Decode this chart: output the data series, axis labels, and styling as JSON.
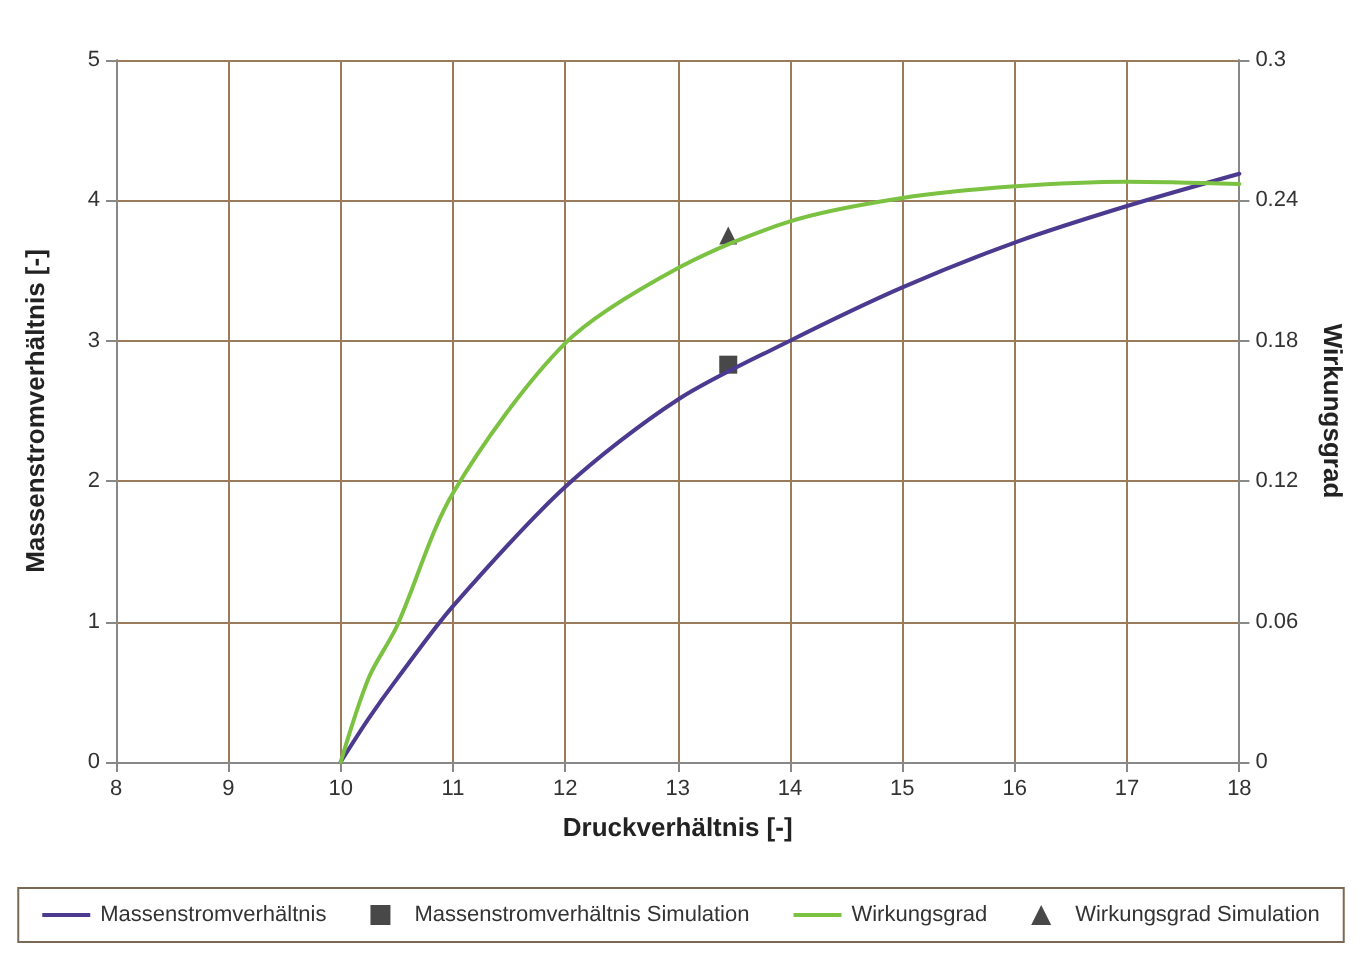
{
  "chart_data": {
    "type": "line",
    "xlabel": "Druckverhältnis [-]",
    "ylabel": "Massenstromverhältnis [-]",
    "y2label": "Wirkungsgrad",
    "xlim": [
      8,
      18
    ],
    "xticks": [
      8,
      9,
      10,
      11,
      12,
      13,
      14,
      15,
      16,
      17,
      18
    ],
    "ylim": [
      0,
      5
    ],
    "yticks": [
      0,
      1,
      2,
      3,
      4,
      5
    ],
    "y2lim": [
      0,
      0.3
    ],
    "y2ticks": [
      0,
      0.06,
      0.12,
      0.18,
      0.24,
      0.3
    ],
    "grid": true,
    "legend": "bottom",
    "marker": "none",
    "line_style": "solid",
    "series": [
      {
        "name": "Massenstromverhältnis",
        "color": "#4b3a8f",
        "x": [
          10,
          10.25,
          10.5,
          11,
          12,
          13,
          14,
          15,
          16,
          17,
          18
        ],
        "values": [
          0,
          0.31,
          0.59,
          1.11,
          1.96,
          2.58,
          3.0,
          3.38,
          3.7,
          3.96,
          4.19
        ]
      },
      {
        "name": "Massenstromverhältnis Simulation",
        "type": "scatter",
        "marker": "square",
        "color": "#1a1a1a",
        "x": [
          13.45
        ],
        "values": [
          2.83
        ]
      },
      {
        "name": "Wirkungsgrad",
        "axis": "y2",
        "color": "#7cc242",
        "x": [
          10,
          10.25,
          10.5,
          11,
          12,
          13,
          14,
          15,
          16,
          17,
          18
        ],
        "values": [
          0,
          0.036,
          0.058,
          0.115,
          0.179,
          0.211,
          0.231,
          0.241,
          0.246,
          0.248,
          0.247
        ]
      },
      {
        "name": "Wirkungsgrad Simulation",
        "type": "scatter",
        "axis": "y2",
        "marker": "triangle",
        "color": "#1a1a1a",
        "x": [
          13.45
        ],
        "values": [
          0.225
        ]
      }
    ]
  }
}
